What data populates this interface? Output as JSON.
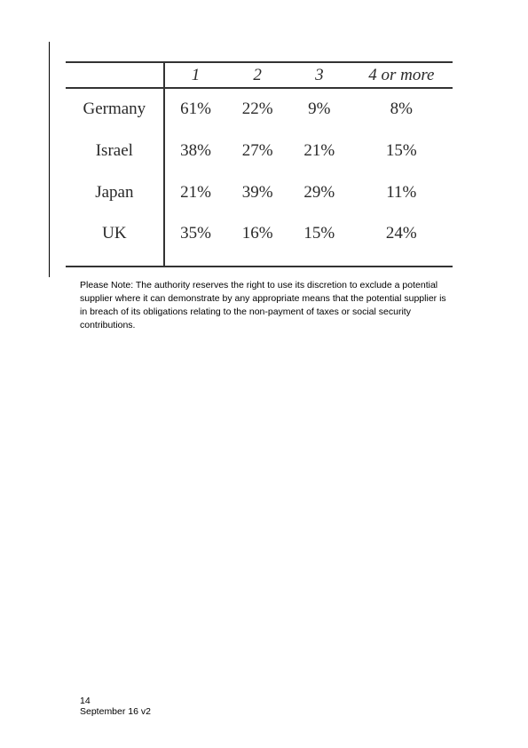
{
  "table": {
    "headers": [
      "",
      "1",
      "2",
      "3",
      "4 or more"
    ],
    "rows": [
      {
        "country": "Germany",
        "values": [
          "61%",
          "22%",
          "9%",
          "8%"
        ]
      },
      {
        "country": "Israel",
        "values": [
          "38%",
          "27%",
          "21%",
          "15%"
        ]
      },
      {
        "country": "Japan",
        "values": [
          "21%",
          "39%",
          "29%",
          "11%"
        ]
      },
      {
        "country": "UK",
        "values": [
          "35%",
          "16%",
          "15%",
          "24%"
        ]
      }
    ]
  },
  "note": "Please Note: The authority reserves the right to use its discretion to exclude a potential supplier where it can demonstrate by any appropriate means that the potential supplier is in breach of its obligations relating to the non-payment of taxes or social security contributions.",
  "footer": {
    "page_number": "14",
    "version": "September 16 v2"
  }
}
